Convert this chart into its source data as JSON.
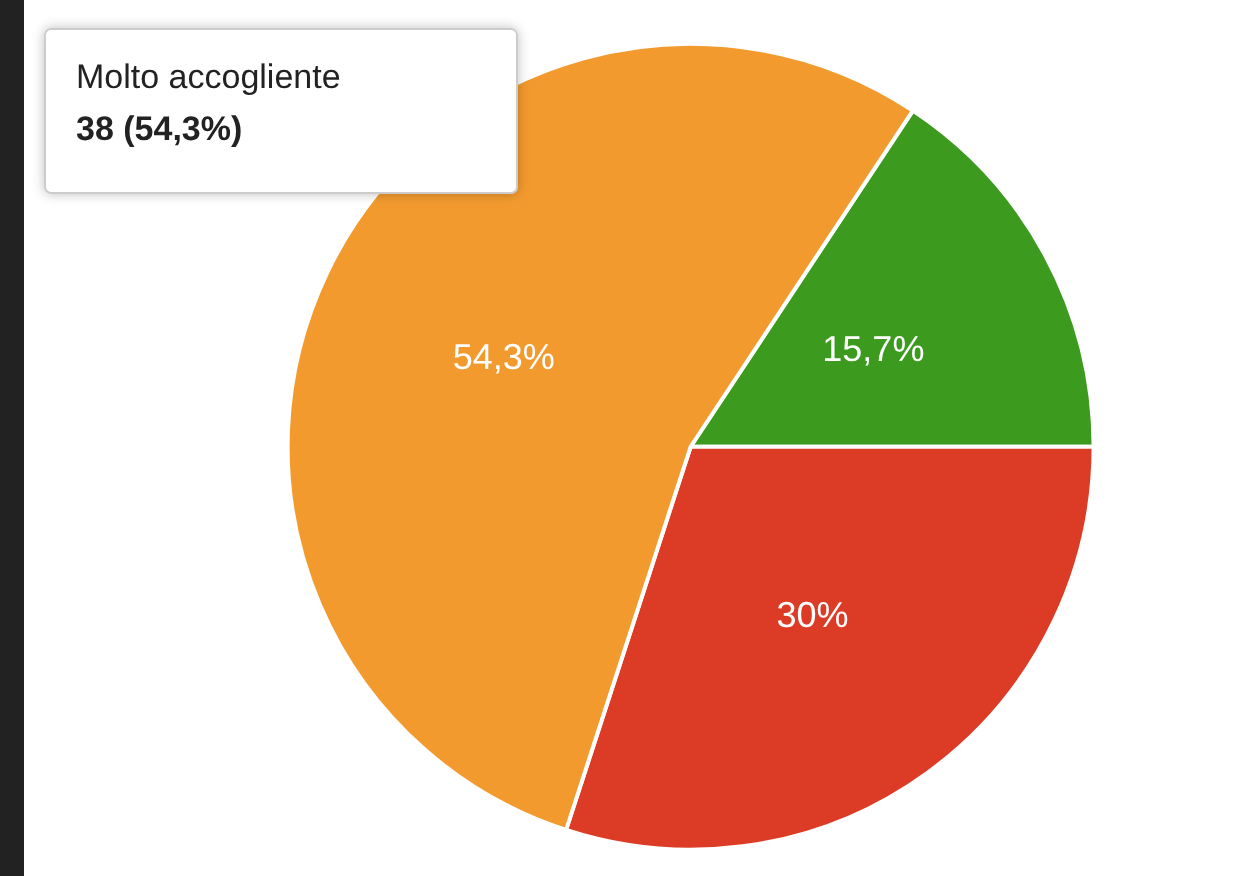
{
  "chart_data": {
    "type": "pie",
    "categories": [
      null,
      null,
      "Molto accogliente"
    ],
    "values": [
      15.7,
      30,
      54.3
    ],
    "colors": [
      "#3c9a1f",
      "#dc3b26",
      "#f29a2e"
    ],
    "value_labels": [
      "15,7%",
      "30%",
      "54,3%"
    ],
    "annotations": [
      "38 (54,3%)"
    ]
  }
}
